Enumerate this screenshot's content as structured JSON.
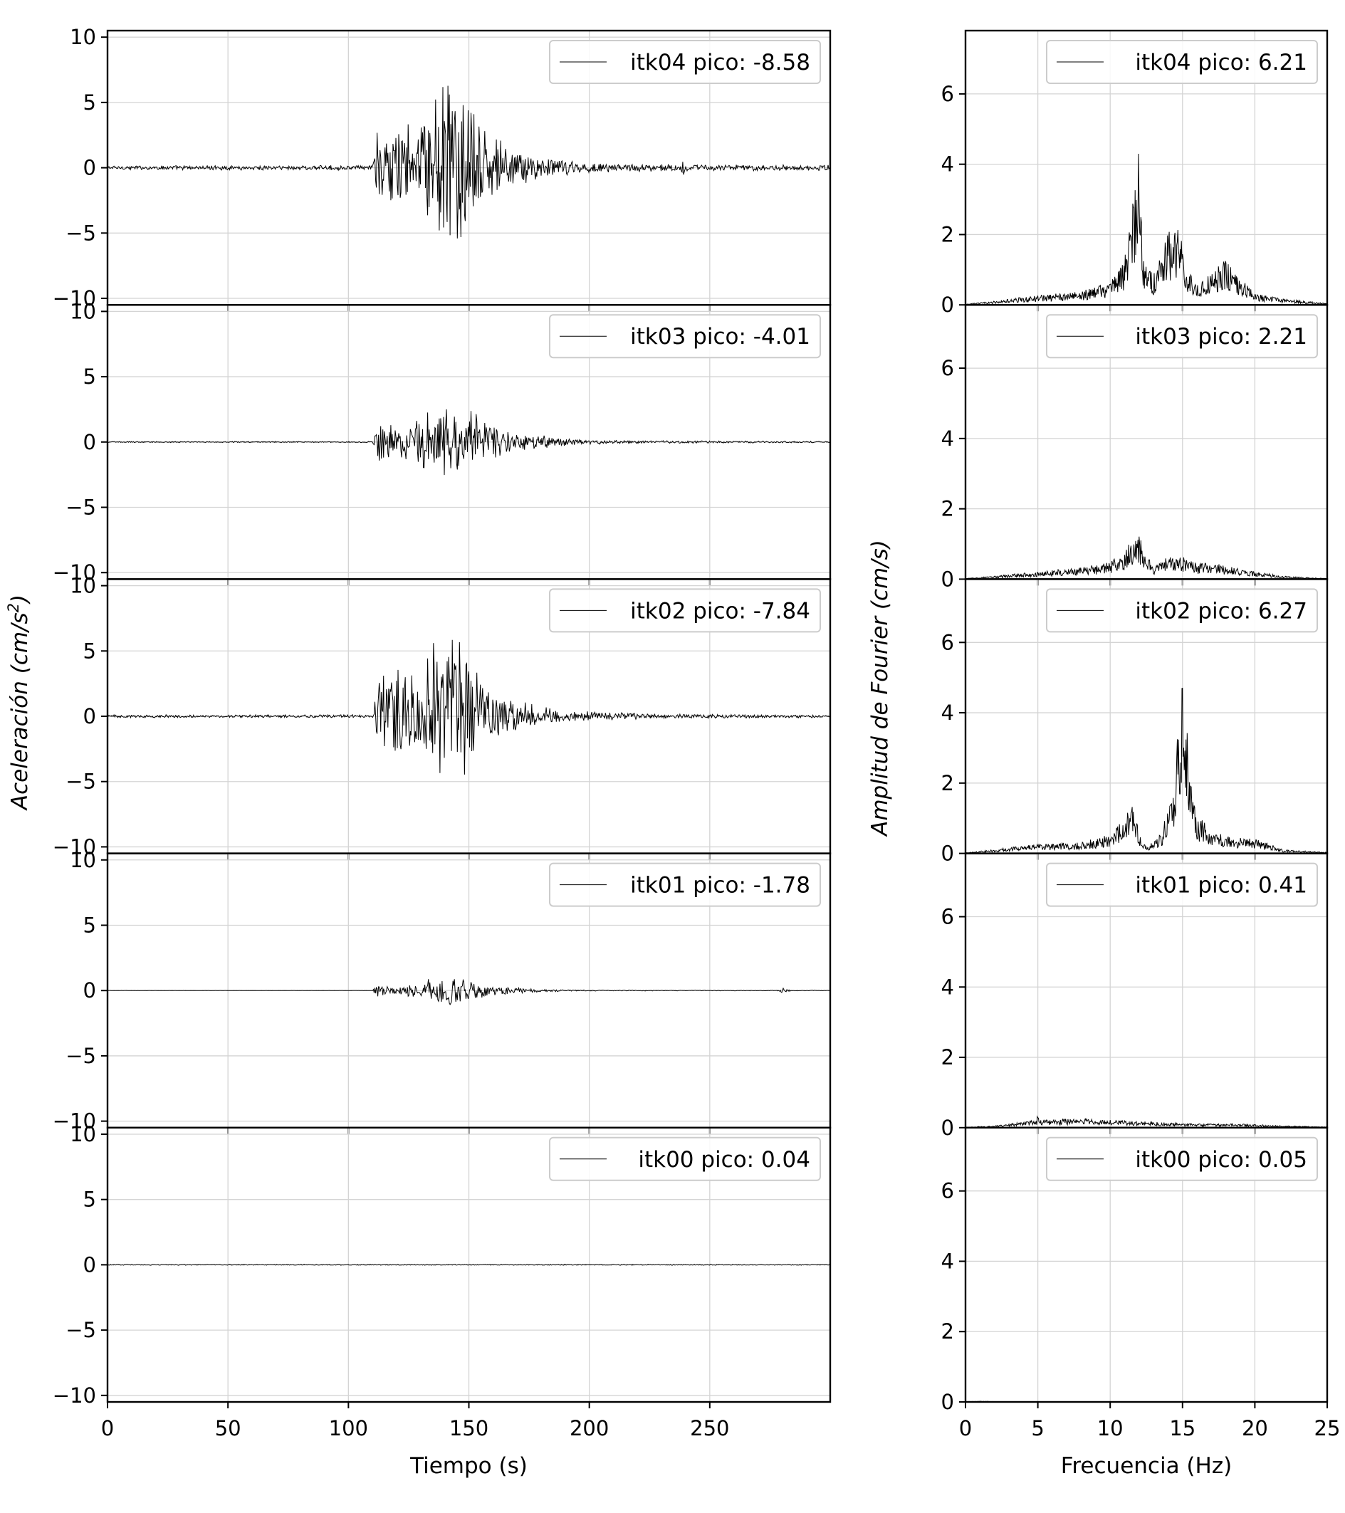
{
  "chart_data": [
    {
      "type": "line",
      "panel": "waveforms",
      "xlabel": "Tiempo (s)",
      "ylabel": "Aceleración (cm/s²)",
      "ylabel_main": "Aceleración (cm/s",
      "ylabel_sup": "2",
      "ylabel_close": ")",
      "xlim": [
        0,
        300
      ],
      "ylim": [
        -10.5,
        10.5
      ],
      "xticks": [
        0,
        50,
        100,
        150,
        200,
        250
      ],
      "yticks": [
        -10,
        -5,
        0,
        5,
        10
      ],
      "grid": true,
      "legend_position": "top-right",
      "line_color": "#000000",
      "series": [
        {
          "name": "itk04",
          "legend": "itk04 pico: -8.58",
          "peak": -8.58,
          "envelope": {
            "t": [
              0,
              110,
              112,
              120,
              130,
              138,
              142,
              148,
              155,
              165,
              180,
              200,
              220,
              238,
              239,
              240,
              260,
              300
            ],
            "a": [
              0.18,
              0.2,
              3.2,
              3.4,
              4.5,
              6.6,
              8.2,
              6.0,
              3.6,
              2.0,
              0.9,
              0.45,
              0.3,
              0.3,
              0.8,
              0.3,
              0.25,
              0.22
            ]
          }
        },
        {
          "name": "itk03",
          "legend": "itk03 pico: -4.01",
          "peak": -4.01,
          "envelope": {
            "t": [
              0,
              110,
              112,
              120,
              130,
              140,
              145,
              150,
              160,
              170,
              185,
              200,
              220,
              240,
              300
            ],
            "a": [
              0.05,
              0.05,
              1.8,
              1.7,
              2.2,
              3.5,
              3.6,
              2.6,
              1.5,
              0.8,
              0.4,
              0.2,
              0.12,
              0.1,
              0.06
            ]
          }
        },
        {
          "name": "itk02",
          "legend": "itk02 pico: -7.84",
          "peak": -7.84,
          "envelope": {
            "t": [
              0,
              110,
              112,
              120,
              130,
              138,
              142,
              148,
              155,
              165,
              180,
              200,
              220,
              240,
              260,
              300
            ],
            "a": [
              0.12,
              0.13,
              3.5,
              3.8,
              4.2,
              7.5,
              7.8,
              5.5,
              3.2,
              1.8,
              0.8,
              0.4,
              0.25,
              0.18,
              0.15,
              0.12
            ]
          }
        },
        {
          "name": "itk01",
          "legend": "itk01 pico: -1.78",
          "peak": -1.78,
          "envelope": {
            "t": [
              0,
              110,
              112,
              125,
              138,
              143,
              150,
              160,
              175,
              200,
              240,
              278,
              281,
              284,
              300
            ],
            "a": [
              0.01,
              0.01,
              0.55,
              0.55,
              1.2,
              1.6,
              0.9,
              0.4,
              0.15,
              0.05,
              0.03,
              0.03,
              0.25,
              0.03,
              0.02
            ]
          }
        },
        {
          "name": "itk00",
          "legend": "itk00 pico: 0.04",
          "peak": 0.04,
          "envelope": {
            "t": [
              0,
              300
            ],
            "a": [
              0.04,
              0.04
            ]
          }
        }
      ]
    },
    {
      "type": "line",
      "panel": "spectra",
      "xlabel": "Frecuencia (Hz)",
      "ylabel": "Amplitud de Fourier (cm/s)",
      "xlim": [
        0,
        25
      ],
      "ylim": [
        0,
        7.8
      ],
      "xticks": [
        0,
        5,
        10,
        15,
        20,
        25
      ],
      "yticks": [
        0,
        2,
        4,
        6
      ],
      "grid": true,
      "legend_position": "top-right",
      "line_color": "#000000",
      "series": [
        {
          "name": "itk04",
          "legend": "itk04 pico: 6.21",
          "peak": 6.21,
          "profile": {
            "f": [
              0,
              2,
              5,
              8,
              10,
              11,
              11.7,
              11.9,
              12.3,
              13,
              13.5,
              14,
              14.8,
              15.3,
              16,
              17,
              18,
              19,
              20,
              22,
              25
            ],
            "a": [
              0.02,
              0.1,
              0.25,
              0.35,
              0.6,
              1.2,
              3.0,
              4.4,
              1.3,
              0.8,
              1.4,
              1.9,
              2.0,
              1.0,
              0.5,
              0.9,
              1.2,
              0.7,
              0.3,
              0.15,
              0.05
            ]
          }
        },
        {
          "name": "itk03",
          "legend": "itk03 pico: 2.21",
          "peak": 2.21,
          "profile": {
            "f": [
              0,
              2,
              5,
              8,
              10,
              11,
              11.8,
              12.3,
              13,
              14,
              15,
              16,
              17,
              18,
              20,
              22,
              25
            ],
            "a": [
              0.02,
              0.08,
              0.2,
              0.3,
              0.45,
              0.7,
              1.4,
              0.8,
              0.3,
              0.6,
              0.6,
              0.4,
              0.45,
              0.35,
              0.2,
              0.08,
              0.02
            ]
          }
        },
        {
          "name": "itk02",
          "legend": "itk02 pico: 6.27",
          "peak": 6.27,
          "profile": {
            "f": [
              0,
              2,
              5,
              8,
              10,
              11,
              11.6,
              12,
              12.5,
              13.5,
              14.2,
              14.8,
              15.1,
              15.5,
              16,
              17,
              18,
              20,
              21,
              22,
              25
            ],
            "a": [
              0.02,
              0.1,
              0.25,
              0.3,
              0.5,
              0.9,
              1.4,
              0.6,
              0.15,
              0.5,
              1.5,
              3.5,
              5.0,
              2.0,
              1.0,
              0.6,
              0.45,
              0.4,
              0.25,
              0.1,
              0.03
            ]
          }
        },
        {
          "name": "itk01",
          "legend": "itk01 pico: 0.41",
          "peak": 0.41,
          "profile": {
            "f": [
              0,
              2,
              4.9,
              5,
              5.2,
              8,
              10,
              13,
              16,
              19,
              22,
              25
            ],
            "a": [
              0.01,
              0.05,
              0.2,
              0.35,
              0.2,
              0.25,
              0.2,
              0.15,
              0.1,
              0.1,
              0.05,
              0.02
            ]
          }
        },
        {
          "name": "itk00",
          "legend": "itk00 pico: 0.05",
          "peak": 0.05,
          "profile": {
            "f": [
              0,
              1,
              2,
              25
            ],
            "a": [
              0.005,
              0.02,
              0.01,
              0.003
            ]
          }
        }
      ]
    }
  ]
}
